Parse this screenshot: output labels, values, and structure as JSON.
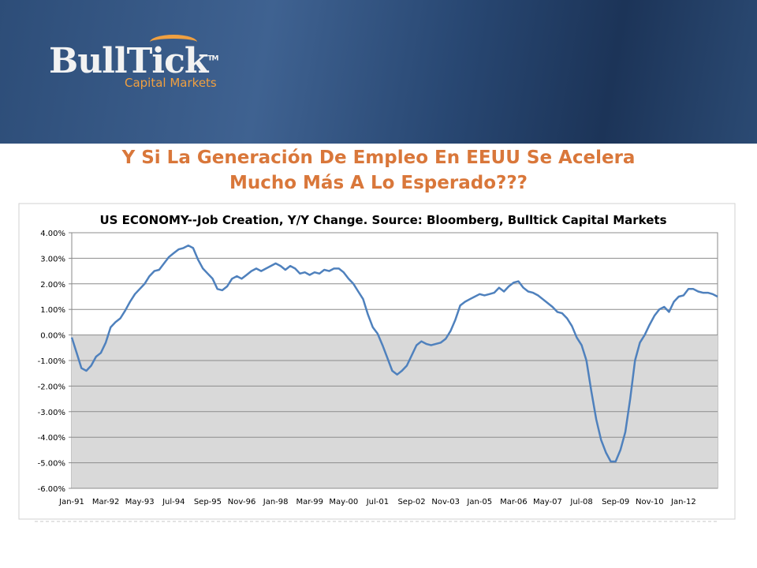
{
  "logo": {
    "name": "BullTick",
    "trademark": "TM",
    "tagline": "Capital Markets"
  },
  "slide_title": [
    "Y Si La Generación De Empleo En EEUU Se Acelera",
    "Mucho Más A Lo Esperado???"
  ],
  "chart_data": {
    "type": "line",
    "title": "US ECONOMY--Job Creation, Y/Y Change. Source: Bloomberg, Bulltick Capital Markets",
    "categories": [
      "Jan-91",
      null,
      null,
      null,
      null,
      null,
      null,
      "Mar-92",
      null,
      null,
      null,
      null,
      null,
      null,
      "May-93",
      null,
      null,
      null,
      null,
      null,
      null,
      "Jul-94",
      null,
      null,
      null,
      null,
      null,
      null,
      "Sep-95",
      null,
      null,
      null,
      null,
      null,
      null,
      "Nov-96",
      null,
      null,
      null,
      null,
      null,
      null,
      "Jan-98",
      null,
      null,
      null,
      null,
      null,
      null,
      "Mar-99",
      null,
      null,
      null,
      null,
      null,
      null,
      "May-00",
      null,
      null,
      null,
      null,
      null,
      null,
      "Jul-01",
      null,
      null,
      null,
      null,
      null,
      null,
      "Sep-02",
      null,
      null,
      null,
      null,
      null,
      null,
      "Nov-03",
      null,
      null,
      null,
      null,
      null,
      null,
      "Jan-05",
      null,
      null,
      null,
      null,
      null,
      null,
      "Mar-06",
      null,
      null,
      null,
      null,
      null,
      null,
      "May-07",
      null,
      null,
      null,
      null,
      null,
      null,
      "Jul-08",
      null,
      null,
      null,
      null,
      null,
      null,
      "Sep-09",
      null,
      null,
      null,
      null,
      null,
      null,
      "Nov-10",
      null,
      null,
      null,
      null,
      null,
      null,
      "Jan-12",
      null,
      null,
      null,
      null,
      null,
      null,
      null
    ],
    "series": [
      {
        "color": "#4f81bd",
        "values": [
          -0.1,
          -0.7,
          -1.3,
          -1.4,
          -1.2,
          -0.85,
          -0.7,
          -0.3,
          0.3,
          0.5,
          0.65,
          0.95,
          1.3,
          1.6,
          1.8,
          2.0,
          2.3,
          2.5,
          2.55,
          2.8,
          3.05,
          3.2,
          3.35,
          3.4,
          3.5,
          3.4,
          2.95,
          2.6,
          2.4,
          2.2,
          1.8,
          1.75,
          1.9,
          2.2,
          2.3,
          2.2,
          2.35,
          2.5,
          2.6,
          2.5,
          2.6,
          2.7,
          2.8,
          2.7,
          2.55,
          2.7,
          2.6,
          2.4,
          2.45,
          2.35,
          2.45,
          2.4,
          2.55,
          2.5,
          2.6,
          2.6,
          2.45,
          2.2,
          2.0,
          1.7,
          1.4,
          0.8,
          0.3,
          0.05,
          -0.4,
          -0.9,
          -1.4,
          -1.55,
          -1.4,
          -1.2,
          -0.8,
          -0.4,
          -0.25,
          -0.35,
          -0.4,
          -0.35,
          -0.3,
          -0.15,
          0.15,
          0.6,
          1.15,
          1.3,
          1.4,
          1.5,
          1.6,
          1.55,
          1.6,
          1.65,
          1.85,
          1.7,
          1.9,
          2.05,
          2.1,
          1.85,
          1.7,
          1.65,
          1.55,
          1.4,
          1.25,
          1.1,
          0.9,
          0.85,
          0.65,
          0.35,
          -0.1,
          -0.4,
          -1.0,
          -2.2,
          -3.3,
          -4.1,
          -4.6,
          -4.95,
          -4.95,
          -4.5,
          -3.8,
          -2.5,
          -1.0,
          -0.3,
          0.0,
          0.4,
          0.75,
          1.0,
          1.1,
          0.9,
          1.3,
          1.5,
          1.55,
          1.8,
          1.8,
          1.7,
          1.65,
          1.65,
          1.6,
          1.5
        ]
      }
    ],
    "ylim": [
      -6,
      4
    ],
    "yticks": [
      {
        "value": 4,
        "label": "4.00%"
      },
      {
        "value": 3,
        "label": "3.00%"
      },
      {
        "value": 2,
        "label": "2.00%"
      },
      {
        "value": 1,
        "label": "1.00%"
      },
      {
        "value": 0,
        "label": "0.00%"
      },
      {
        "value": -1,
        "label": "-1.00%"
      },
      {
        "value": -2,
        "label": "-2.00%"
      },
      {
        "value": -3,
        "label": "-3.00%"
      },
      {
        "value": -4,
        "label": "-4.00%"
      },
      {
        "value": -5,
        "label": "-5.00%"
      },
      {
        "value": -6,
        "label": "-6.00%"
      }
    ],
    "grid": true
  }
}
